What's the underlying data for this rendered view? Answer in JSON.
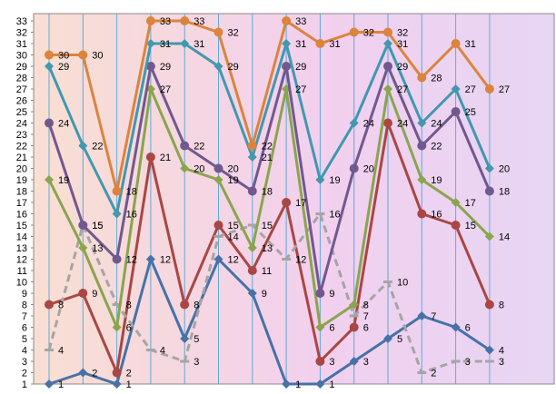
{
  "chart_data": {
    "type": "line",
    "title": "",
    "xlabel": "",
    "ylabel": "",
    "ylim": [
      1,
      33
    ],
    "yticks": [
      1,
      2,
      3,
      4,
      5,
      6,
      7,
      8,
      9,
      10,
      11,
      12,
      13,
      14,
      15,
      16,
      17,
      18,
      19,
      20,
      21,
      22,
      23,
      24,
      25,
      26,
      27,
      28,
      29,
      30,
      31,
      32,
      33
    ],
    "x": [
      1,
      2,
      3,
      4,
      5,
      6,
      7,
      8,
      9,
      10,
      11,
      12,
      13,
      14
    ],
    "grid": "vertical lines at each category",
    "legend": "none",
    "background_colors": [
      "#f9dfd2",
      "#f2d0ee",
      "#e7d6f4"
    ],
    "series": [
      {
        "color": "#4572a7",
        "dash": "solid",
        "marker": "diamond",
        "values": [
          1,
          2,
          1,
          12,
          5,
          12,
          9,
          1,
          1,
          3,
          5,
          7,
          6,
          4
        ]
      },
      {
        "color": "#aa4643",
        "dash": "solid",
        "marker": "circle",
        "values": [
          8,
          9,
          2,
          21,
          8,
          15,
          11,
          17,
          3,
          6,
          24,
          16,
          15,
          8
        ]
      },
      {
        "color": "#a5a5a5",
        "dash": "dashed",
        "marker": "dash",
        "values": [
          4,
          15,
          8,
          4,
          3,
          14,
          15,
          12,
          16,
          7,
          10,
          2,
          3,
          3
        ]
      },
      {
        "color": "#89a54e",
        "dash": "solid",
        "marker": "diamond",
        "values": [
          19,
          13,
          6,
          27,
          20,
          19,
          13,
          27,
          6,
          8,
          27,
          19,
          17,
          14
        ]
      },
      {
        "color": "#71588f",
        "dash": "solid",
        "marker": "circle",
        "values": [
          24,
          15,
          12,
          29,
          22,
          20,
          18,
          29,
          9,
          20,
          29,
          22,
          25,
          18
        ]
      },
      {
        "color": "#4198af",
        "dash": "solid",
        "marker": "diamond",
        "values": [
          29,
          22,
          16,
          31,
          31,
          29,
          21,
          31,
          19,
          24,
          31,
          24,
          27,
          20
        ]
      },
      {
        "color": "#db843d",
        "dash": "solid",
        "marker": "circle",
        "values": [
          30,
          30,
          18,
          33,
          33,
          32,
          22,
          33,
          31,
          32,
          32,
          28,
          31,
          27
        ]
      }
    ]
  }
}
